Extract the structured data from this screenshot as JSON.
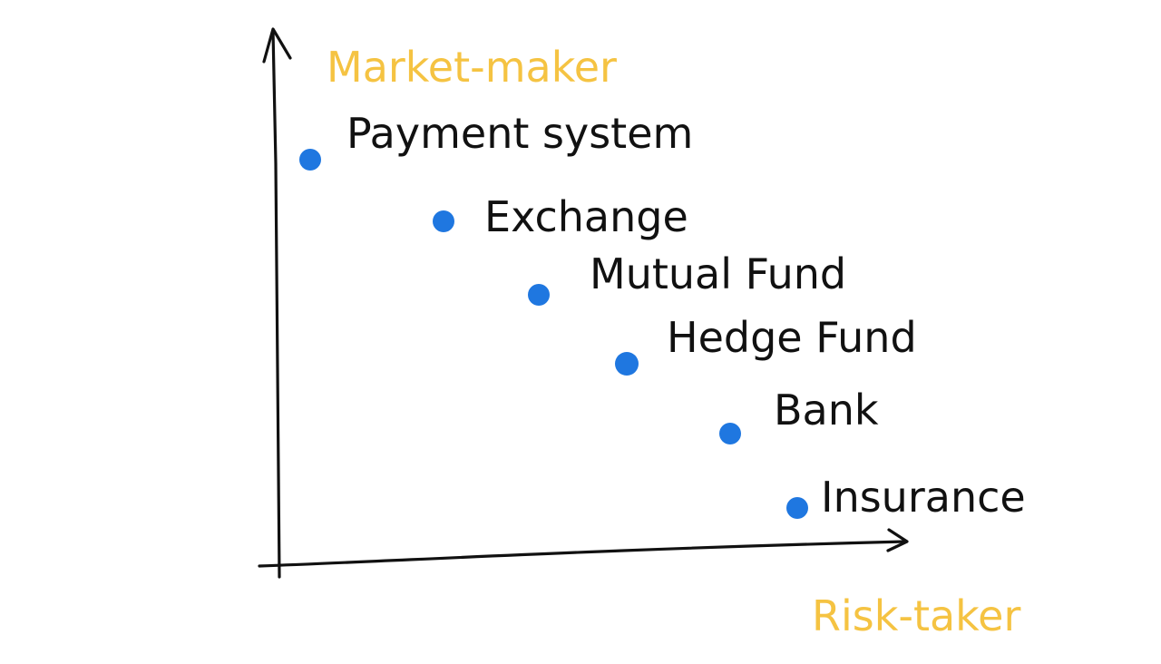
{
  "diagram": {
    "y_axis_label": "Market-maker",
    "x_axis_label": "Risk-taker",
    "points": [
      {
        "label": "Payment system"
      },
      {
        "label": "Exchange"
      },
      {
        "label": "Mutual Fund"
      },
      {
        "label": "Hedge Fund"
      },
      {
        "label": "Bank"
      },
      {
        "label": "Insurance"
      }
    ]
  },
  "colors": {
    "ink": "#111111",
    "axis_label": "#f5c342",
    "point": "#1f77e0",
    "background": "#ffffff"
  }
}
